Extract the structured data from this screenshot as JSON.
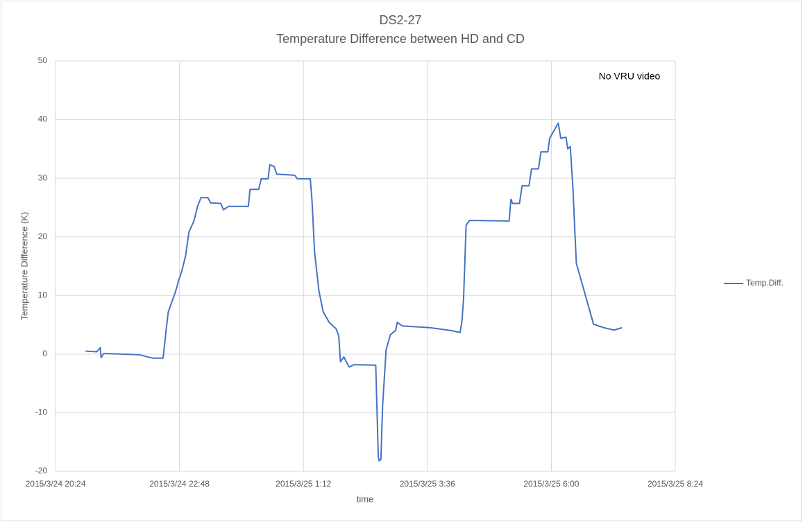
{
  "chart_data": {
    "type": "line",
    "title": "DS2-27",
    "subtitle": "Temperature Difference between HD and CD",
    "annotation": "No VRU video",
    "x_label": "time",
    "y_label": "Temperature Difference (K)",
    "xlim": [
      "2015/3/24 20:24",
      "2015/3/25 8:24"
    ],
    "xticks": [
      "2015/3/24 20:24",
      "2015/3/24 22:48",
      "2015/3/25 1:12",
      "2015/3/25 3:36",
      "2015/3/25 6:00",
      "2015/3/25 8:24"
    ],
    "ylim": [
      -20,
      50
    ],
    "yticks": [
      -20,
      -10,
      0,
      10,
      20,
      30,
      40,
      50
    ],
    "grid": true,
    "legend": "right",
    "x": [
      "2015/3/24 20:59",
      "2015/3/24 21:12",
      "2015/3/24 21:16",
      "2015/3/24 21:17",
      "2015/3/24 21:20",
      "2015/3/24 22:01",
      "2015/3/24 22:17",
      "2015/3/24 22:29",
      "2015/3/24 22:33",
      "2015/3/24 22:35",
      "2015/3/24 22:43",
      "2015/3/24 22:47",
      "2015/3/24 22:51",
      "2015/3/24 22:55",
      "2015/3/24 22:59",
      "2015/3/24 23:05",
      "2015/3/24 23:09",
      "2015/3/24 23:13",
      "2015/3/24 23:21",
      "2015/3/24 23:24",
      "2015/3/24 23:36",
      "2015/3/24 23:39",
      "2015/3/24 23:45",
      "2015/3/25 0:08",
      "2015/3/25 0:10",
      "2015/3/25 0:20",
      "2015/3/25 0:23",
      "2015/3/25 0:31",
      "2015/3/25 0:33",
      "2015/3/25 0:38",
      "2015/3/25 0:41",
      "2015/3/25 1:02",
      "2015/3/25 1:05",
      "2015/3/25 1:20",
      "2015/3/25 1:22",
      "2015/3/25 1:25",
      "2015/3/25 1:30",
      "2015/3/25 1:35",
      "2015/3/25 1:42",
      "2015/3/25 1:50",
      "2015/3/25 1:53",
      "2015/3/25 1:55",
      "2015/3/25 1:59",
      "2015/3/25 2:05",
      "2015/3/25 2:11",
      "2015/3/25 2:36",
      "2015/3/25 2:39",
      "2015/3/25 2:40",
      "2015/3/25 2:42",
      "2015/3/25 2:44",
      "2015/3/25 2:48",
      "2015/3/25 2:53",
      "2015/3/25 2:59",
      "2015/3/25 3:01",
      "2015/3/25 3:07",
      "2015/3/25 3:39",
      "2015/3/25 4:04",
      "2015/3/25 4:14",
      "2015/3/25 4:16",
      "2015/3/25 4:18",
      "2015/3/25 4:21",
      "2015/3/25 4:25",
      "2015/3/25 5:11",
      "2015/3/25 5:13",
      "2015/3/25 5:15",
      "2015/3/25 5:23",
      "2015/3/25 5:26",
      "2015/3/25 5:34",
      "2015/3/25 5:37",
      "2015/3/25 5:45",
      "2015/3/25 5:48",
      "2015/3/25 5:56",
      "2015/3/25 5:58",
      "2015/3/25 6:08",
      "2015/3/25 6:11",
      "2015/3/25 6:17",
      "2015/3/25 6:19",
      "2015/3/25 6:22",
      "2015/3/25 6:25",
      "2015/3/25 6:29",
      "2015/3/25 6:49",
      "2015/3/25 7:01",
      "2015/3/25 7:13",
      "2015/3/25 7:22"
    ],
    "series": [
      {
        "name": "Temp.Diff.",
        "color": "#4472c4",
        "values": [
          0.5,
          0.4,
          1.1,
          -0.6,
          0.1,
          -0.1,
          -0.7,
          -0.7,
          4.8,
          7.2,
          10.5,
          12.5,
          14.3,
          16.7,
          20.8,
          22.8,
          25.2,
          26.7,
          26.7,
          25.8,
          25.7,
          24.6,
          25.2,
          25.2,
          28.1,
          28.1,
          29.9,
          29.9,
          32.3,
          32.0,
          30.7,
          30.5,
          29.9,
          29.9,
          26.1,
          17.3,
          10.8,
          7.2,
          5.4,
          4.3,
          3.1,
          -1.3,
          -0.5,
          -2.2,
          -1.8,
          -1.9,
          -17.6,
          -18.2,
          -18.0,
          -8.8,
          0.7,
          3.3,
          4.0,
          5.4,
          4.8,
          4.5,
          4.0,
          3.7,
          5.4,
          9.3,
          22.0,
          22.8,
          22.7,
          26.4,
          25.7,
          25.7,
          28.7,
          28.7,
          31.6,
          31.6,
          34.5,
          34.5,
          36.8,
          39.4,
          36.8,
          37.0,
          35.0,
          35.4,
          28.5,
          15.5,
          5.1,
          4.5,
          4.1,
          4.5
        ]
      }
    ]
  }
}
